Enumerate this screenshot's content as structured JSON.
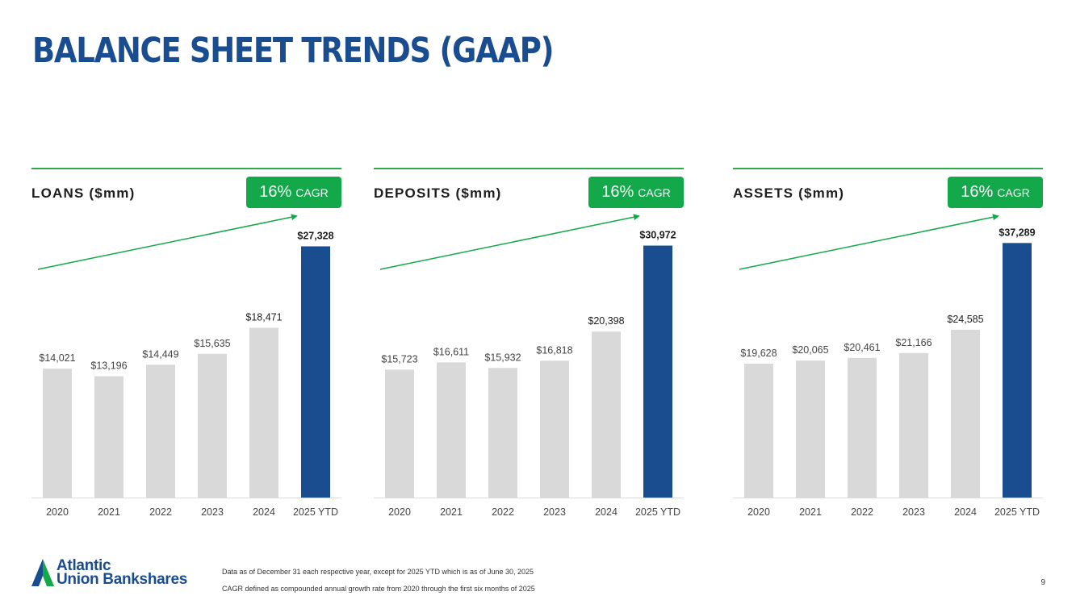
{
  "page": {
    "title": "BALANCE SHEET TRENDS (GAAP)",
    "page_number": "9",
    "footnotes": [
      "Data as of December 31 each respective year, except for 2025 YTD which is as of June 30, 2025",
      "CAGR defined as compounded annual growth rate from 2020 through the first six months of 2025"
    ],
    "logo": {
      "line1": "Atlantic",
      "line2": "Union Bankshares"
    }
  },
  "colors": {
    "title": "#1a4d8f",
    "accent_green": "#13a84a",
    "bar_gray": "#d9d9d9",
    "bar_highlight": "#1a4d8f",
    "rule_green": "#2eaa4a"
  },
  "chart_data": [
    {
      "type": "bar",
      "title": "LOANS ($mm)",
      "badge": {
        "value": "16%",
        "label": "CAGR"
      },
      "categories": [
        "2020",
        "2021",
        "2022",
        "2023",
        "2024",
        "2025 YTD"
      ],
      "values": [
        14021,
        13196,
        14449,
        15635,
        18471,
        27328
      ],
      "labels": [
        "$14,021",
        "$13,196",
        "$14,449",
        "$15,635",
        "$18,471",
        "$27,328"
      ],
      "highlight_index": 5,
      "ylim": [
        0,
        30000
      ],
      "grid": false,
      "trend_arrow": true
    },
    {
      "type": "bar",
      "title": "DEPOSITS ($mm)",
      "badge": {
        "value": "16%",
        "label": "CAGR"
      },
      "categories": [
        "2020",
        "2021",
        "2022",
        "2023",
        "2024",
        "2025 YTD"
      ],
      "values": [
        15723,
        16611,
        15932,
        16818,
        20398,
        30972
      ],
      "labels": [
        "$15,723",
        "$16,611",
        "$15,932",
        "$16,818",
        "$20,398",
        "$30,972"
      ],
      "highlight_index": 5,
      "ylim": [
        0,
        33900
      ],
      "grid": false,
      "trend_arrow": true
    },
    {
      "type": "bar",
      "title": "ASSETS ($mm)",
      "badge": {
        "value": "16%",
        "label": "CAGR"
      },
      "categories": [
        "2020",
        "2021",
        "2022",
        "2023",
        "2024",
        "2025 YTD"
      ],
      "values": [
        19628,
        20065,
        20461,
        21166,
        24585,
        37289
      ],
      "labels": [
        "$19,628",
        "$20,065",
        "$20,461",
        "$21,166",
        "$24,585",
        "$37,289"
      ],
      "highlight_index": 5,
      "ylim": [
        0,
        40400
      ],
      "grid": false,
      "trend_arrow": true
    }
  ]
}
